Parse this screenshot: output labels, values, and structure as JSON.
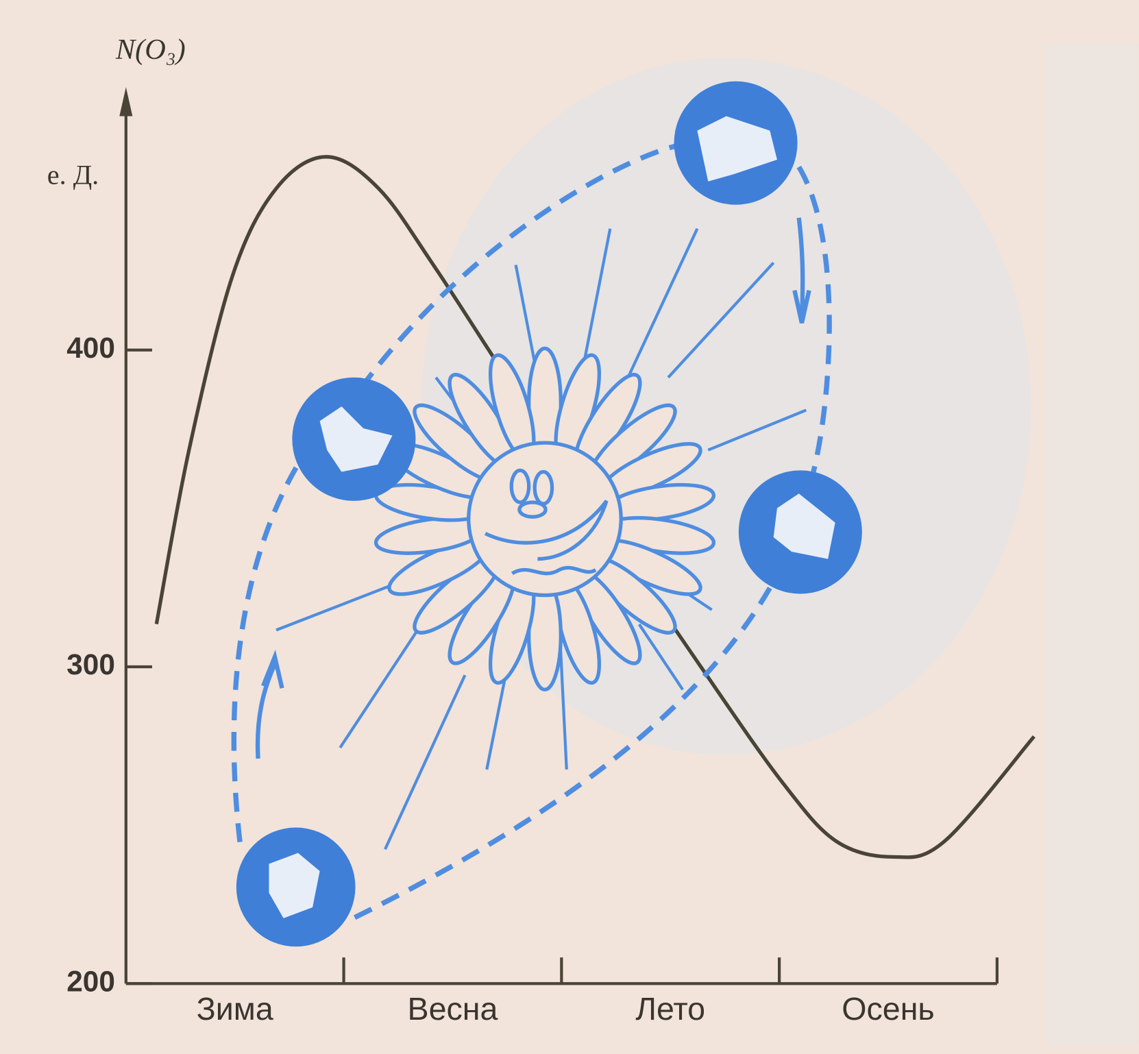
{
  "chart_data": {
    "type": "line",
    "title": "N(O₃)",
    "unit": "е. Д.",
    "categories": [
      "Зима",
      "Весна",
      "Лето",
      "Осень"
    ],
    "x": [
      0.14,
      0.29,
      0.49,
      0.69,
      0.92,
      1.16,
      1.42,
      1.86,
      2.09,
      2.32,
      2.69,
      3.02,
      3.26,
      3.52,
      3.76,
      4.17
    ],
    "series": [
      {
        "color": "#4a4436",
        "values": [
          313.5,
          368.6,
          423.6,
          451,
          461,
          451,
          426,
          380,
          362,
          333,
          295,
          263,
          245,
          240,
          245,
          278
        ]
      }
    ],
    "xlim": [
      0,
      4.2
    ],
    "ylim": [
      200,
      483
    ],
    "yticks": [
      200,
      300,
      400
    ]
  }
}
